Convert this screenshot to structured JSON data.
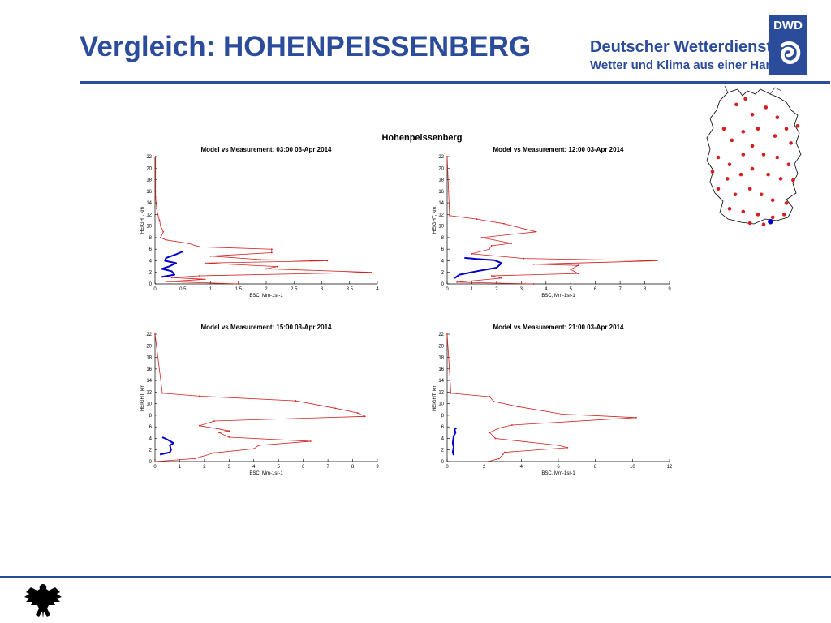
{
  "slide": {
    "title": "Vergleich: HOHENPEISSENBERG"
  },
  "brand": {
    "name": "Deutscher Wetterdienst",
    "tagline": "Wetter und Klima aus einer Hand",
    "logo_text": "DWD",
    "color": "#2b4b9b"
  },
  "figure": {
    "title": "Hohenpeissenberg"
  },
  "colors": {
    "model": "#d42020",
    "measurement": "#0000c8",
    "accent": "#2b4b9b"
  },
  "chart_data": [
    {
      "type": "line",
      "title": "Model vs Measurement: 03:00 03-Apr 2014",
      "xlabel": "BSC, Mm-1sr-1",
      "ylabel": "HEIGHT, km",
      "xlim": [
        0,
        4
      ],
      "ylim": [
        0,
        22
      ],
      "xticks": [
        0,
        0.5,
        1,
        1.5,
        2,
        2.5,
        3,
        3.5,
        4
      ],
      "yticks": [
        0,
        2,
        4,
        6,
        8,
        10,
        12,
        14,
        16,
        18,
        20,
        22
      ],
      "xtick_labels": [
        "0",
        "0.5",
        "1",
        "1.5",
        "2",
        "2.5",
        "3",
        "3.5",
        "4"
      ],
      "series": [
        {
          "role": "model",
          "points": [
            [
              1.5,
              0.0
            ],
            [
              0.2,
              0.4
            ],
            [
              0.9,
              0.8
            ],
            [
              0.3,
              1.1
            ],
            [
              0.8,
              1.4
            ],
            [
              3.9,
              2.0
            ],
            [
              2.0,
              2.6
            ],
            [
              2.2,
              3.0
            ],
            [
              0.9,
              3.6
            ],
            [
              3.1,
              4.0
            ],
            [
              1.9,
              4.2
            ],
            [
              1.0,
              4.8
            ],
            [
              2.1,
              5.4
            ],
            [
              2.1,
              6.0
            ],
            [
              0.8,
              6.4
            ],
            [
              0.6,
              7.0
            ],
            [
              0.2,
              7.6
            ],
            [
              0.1,
              8.0
            ],
            [
              0.15,
              9.0
            ],
            [
              0.1,
              10.0
            ],
            [
              0.08,
              11.0
            ],
            [
              0.05,
              12.0
            ],
            [
              0.03,
              13.0
            ],
            [
              0.02,
              14.0
            ],
            [
              0.01,
              15.0
            ],
            [
              0.01,
              22.0
            ]
          ]
        },
        {
          "role": "measurement",
          "points": [
            [
              0.12,
              1.2
            ],
            [
              0.35,
              1.6
            ],
            [
              0.3,
              2.2
            ],
            [
              0.12,
              2.6
            ],
            [
              0.25,
              3.0
            ],
            [
              0.38,
              3.6
            ],
            [
              0.18,
              4.0
            ],
            [
              0.2,
              4.5
            ],
            [
              0.35,
              5.0
            ],
            [
              0.45,
              5.4
            ],
            [
              0.5,
              5.6
            ]
          ]
        }
      ]
    },
    {
      "type": "line",
      "title": "Model vs Measurement: 12:00 03-Apr 2014",
      "xlabel": "BSC, Mm-1sr-1",
      "ylabel": "HEIGHT, km",
      "xlim": [
        0,
        9
      ],
      "ylim": [
        0,
        22
      ],
      "xticks": [
        0,
        1,
        2,
        3,
        4,
        5,
        6,
        7,
        8,
        9
      ],
      "yticks": [
        0,
        2,
        4,
        6,
        8,
        10,
        12,
        14,
        16,
        18,
        20,
        22
      ],
      "xtick_labels": [
        "0",
        "1",
        "2",
        "3",
        "4",
        "5",
        "6",
        "7",
        "8",
        "9"
      ],
      "series": [
        {
          "role": "model",
          "points": [
            [
              3.5,
              0.0
            ],
            [
              0.4,
              0.3
            ],
            [
              2.2,
              1.0
            ],
            [
              1.8,
              1.4
            ],
            [
              5.3,
              1.8
            ],
            [
              5.0,
              2.5
            ],
            [
              5.3,
              3.2
            ],
            [
              3.5,
              3.4
            ],
            [
              8.5,
              4.0
            ],
            [
              3.1,
              4.4
            ],
            [
              1.0,
              5.2
            ],
            [
              1.7,
              6.0
            ],
            [
              1.8,
              6.6
            ],
            [
              2.6,
              7.0
            ],
            [
              1.4,
              8.0
            ],
            [
              3.6,
              9.0
            ],
            [
              2.3,
              10.4
            ],
            [
              1.2,
              11.2
            ],
            [
              0.1,
              11.8
            ],
            [
              0.0,
              22.0
            ]
          ]
        },
        {
          "role": "measurement",
          "points": [
            [
              0.3,
              1.0
            ],
            [
              0.5,
              1.6
            ],
            [
              1.2,
              2.2
            ],
            [
              2.0,
              2.8
            ],
            [
              2.2,
              3.6
            ],
            [
              1.9,
              4.1
            ],
            [
              1.2,
              4.3
            ],
            [
              0.7,
              4.5
            ]
          ]
        }
      ]
    },
    {
      "type": "line",
      "title": "Model vs Measurement: 15:00 03-Apr 2014",
      "xlabel": "BSC, Mm-1sr-1",
      "ylabel": "HEIGHT, km",
      "xlim": [
        0,
        9
      ],
      "ylim": [
        0,
        22
      ],
      "xticks": [
        0,
        1,
        2,
        3,
        4,
        5,
        6,
        7,
        8,
        9
      ],
      "yticks": [
        0,
        2,
        4,
        6,
        8,
        10,
        12,
        14,
        16,
        18,
        20,
        22
      ],
      "xtick_labels": [
        "0",
        "1",
        "2",
        "3",
        "4",
        "5",
        "6",
        "7",
        "8",
        "9"
      ],
      "series": [
        {
          "role": "model",
          "points": [
            [
              0.0,
              0.0
            ],
            [
              1.6,
              0.5
            ],
            [
              2.4,
              1.5
            ],
            [
              4.0,
              2.2
            ],
            [
              4.2,
              2.8
            ],
            [
              6.3,
              3.5
            ],
            [
              3.0,
              4.2
            ],
            [
              2.6,
              5.0
            ],
            [
              3.0,
              5.3
            ],
            [
              2.5,
              5.7
            ],
            [
              1.8,
              6.2
            ],
            [
              2.4,
              7.0
            ],
            [
              8.5,
              7.8
            ],
            [
              8.2,
              8.4
            ],
            [
              7.3,
              9.2
            ],
            [
              5.7,
              10.5
            ],
            [
              1.8,
              11.3
            ],
            [
              0.3,
              11.8
            ],
            [
              0.0,
              22.0
            ]
          ]
        },
        {
          "role": "measurement",
          "points": [
            [
              0.2,
              1.2
            ],
            [
              0.6,
              1.6
            ],
            [
              0.65,
              2.0
            ],
            [
              0.6,
              2.8
            ],
            [
              0.75,
              3.2
            ],
            [
              0.5,
              3.8
            ],
            [
              0.3,
              4.2
            ]
          ]
        }
      ]
    },
    {
      "type": "line",
      "title": "Model vs Measurement: 21:00 03-Apr 2014",
      "xlabel": "BSC, Mm-1sr-1",
      "ylabel": "HEIGHT, km",
      "xlim": [
        0,
        12
      ],
      "ylim": [
        0,
        22
      ],
      "xticks": [
        0,
        2,
        4,
        6,
        8,
        10,
        12
      ],
      "yticks": [
        0,
        2,
        4,
        6,
        8,
        10,
        12,
        14,
        16,
        18,
        20,
        22
      ],
      "xtick_labels": [
        "0",
        "2",
        "4",
        "6",
        "8",
        "10",
        "12"
      ],
      "series": [
        {
          "role": "model",
          "points": [
            [
              2.2,
              0.0
            ],
            [
              2.8,
              0.5
            ],
            [
              3.0,
              1.2
            ],
            [
              3.1,
              1.6
            ],
            [
              6.5,
              2.4
            ],
            [
              6.0,
              2.8
            ],
            [
              2.6,
              4.0
            ],
            [
              2.3,
              5.0
            ],
            [
              2.8,
              5.8
            ],
            [
              3.5,
              6.3
            ],
            [
              10.2,
              7.6
            ],
            [
              6.2,
              8.2
            ],
            [
              3.8,
              9.5
            ],
            [
              2.5,
              10.4
            ],
            [
              2.3,
              11.2
            ],
            [
              0.2,
              11.8
            ],
            [
              0.0,
              22.0
            ]
          ]
        },
        {
          "role": "measurement",
          "points": [
            [
              0.35,
              1.1
            ],
            [
              0.3,
              1.6
            ],
            [
              0.35,
              2.5
            ],
            [
              0.3,
              3.2
            ],
            [
              0.35,
              4.4
            ],
            [
              0.45,
              5.0
            ],
            [
              0.4,
              5.6
            ],
            [
              0.5,
              5.8
            ]
          ]
        }
      ]
    }
  ],
  "map": {
    "station_color": "#d42020",
    "highlight_color": "#0000c8",
    "stations": [
      [
        0.36,
        0.13
      ],
      [
        0.44,
        0.09
      ],
      [
        0.5,
        0.2
      ],
      [
        0.62,
        0.15
      ],
      [
        0.72,
        0.22
      ],
      [
        0.8,
        0.3
      ],
      [
        0.9,
        0.28
      ],
      [
        0.25,
        0.3
      ],
      [
        0.32,
        0.38
      ],
      [
        0.42,
        0.32
      ],
      [
        0.55,
        0.3
      ],
      [
        0.7,
        0.35
      ],
      [
        0.84,
        0.4
      ],
      [
        0.2,
        0.5
      ],
      [
        0.3,
        0.55
      ],
      [
        0.42,
        0.48
      ],
      [
        0.5,
        0.42
      ],
      [
        0.6,
        0.48
      ],
      [
        0.72,
        0.5
      ],
      [
        0.82,
        0.55
      ],
      [
        0.15,
        0.6
      ],
      [
        0.28,
        0.65
      ],
      [
        0.4,
        0.62
      ],
      [
        0.5,
        0.58
      ],
      [
        0.64,
        0.62
      ],
      [
        0.75,
        0.65
      ],
      [
        0.86,
        0.66
      ],
      [
        0.2,
        0.72
      ],
      [
        0.35,
        0.76
      ],
      [
        0.48,
        0.72
      ],
      [
        0.58,
        0.76
      ],
      [
        0.68,
        0.8
      ],
      [
        0.8,
        0.82
      ],
      [
        0.3,
        0.86
      ],
      [
        0.42,
        0.88
      ],
      [
        0.55,
        0.9
      ],
      [
        0.68,
        0.92
      ],
      [
        0.78,
        0.9
      ],
      [
        0.48,
        0.96
      ],
      [
        0.6,
        0.97
      ]
    ],
    "highlight": [
      0.66,
      0.95
    ]
  }
}
